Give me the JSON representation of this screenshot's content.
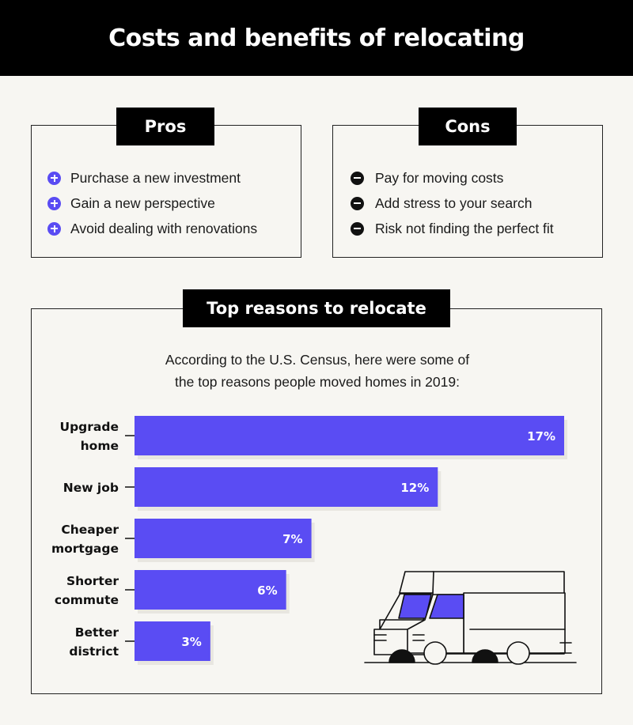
{
  "header": {
    "title": "Costs and benefits of relocating"
  },
  "pros": {
    "label": "Pros",
    "items": [
      "Purchase a new investment",
      "Gain a new perspective",
      "Avoid dealing with renovations"
    ]
  },
  "cons": {
    "label": "Cons",
    "items": [
      "Pay for moving costs",
      "Add stress to your search",
      "Risk not finding the perfect fit"
    ]
  },
  "reasons": {
    "label": "Top reasons to relocate",
    "intro_line1": "According to the U.S. Census, here were some of",
    "intro_line2": "the top reasons people moved homes in 2019:"
  },
  "colors": {
    "accent": "#5a4cf3",
    "shadow": "#e8e6e0",
    "dark": "#000000"
  },
  "icons": {
    "pros_bullet": "plus-circle-icon",
    "cons_bullet": "minus-circle-icon",
    "illustration": "moving-truck-icon"
  },
  "chart_data": {
    "type": "bar",
    "orientation": "horizontal",
    "categories": [
      [
        "Upgrade",
        "home"
      ],
      [
        "New job"
      ],
      [
        "Cheaper",
        "mortgage"
      ],
      [
        "Shorter",
        "commute"
      ],
      [
        "Better",
        "district"
      ]
    ],
    "values": [
      17,
      12,
      7,
      6,
      3
    ],
    "value_labels": [
      "17%",
      "12%",
      "7%",
      "6%",
      "3%"
    ],
    "unit": "%",
    "xlim": [
      0,
      17
    ]
  }
}
